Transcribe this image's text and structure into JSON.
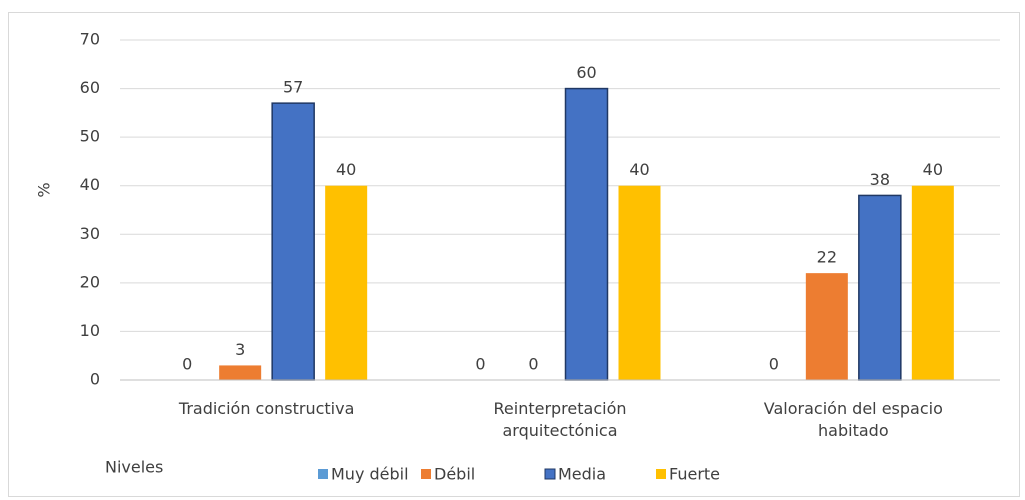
{
  "chart_data": {
    "type": "bar",
    "y_label": "%",
    "legend_title": "Niveles",
    "categories": [
      "Tradición constructiva",
      "Reinterpretación arquitectónica",
      "Valoración del espacio habitado"
    ],
    "series": [
      {
        "name": "Muy débil",
        "color": "#5b9bd5",
        "values": [
          0,
          0,
          0
        ]
      },
      {
        "name": "Débil",
        "color": "#ed7d31",
        "values": [
          3,
          0,
          22
        ]
      },
      {
        "name": "Media",
        "color": "#4472c4",
        "values": [
          57,
          60,
          38
        ]
      },
      {
        "name": "Fuerte",
        "color": "#ffc000",
        "values": [
          40,
          40,
          40
        ]
      }
    ],
    "ylim": [
      0,
      70
    ],
    "yticks": [
      0,
      10,
      20,
      30,
      40,
      50,
      60,
      70
    ],
    "grid": true,
    "legend": "bottom"
  }
}
